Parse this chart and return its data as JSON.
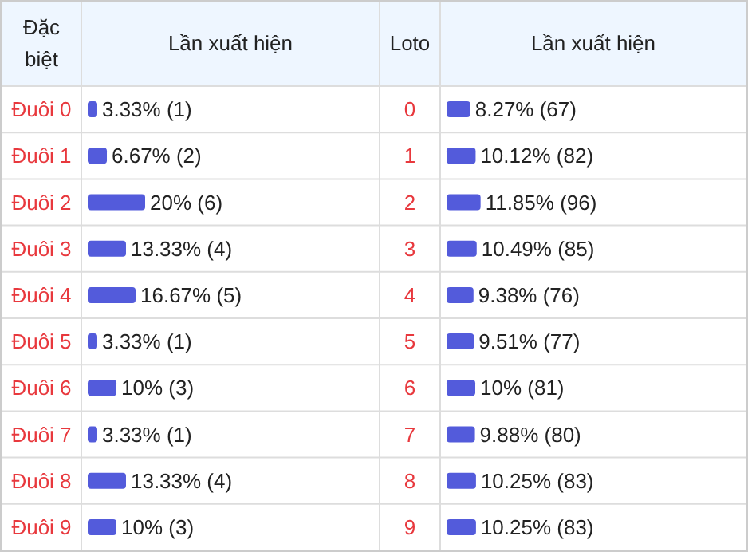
{
  "chart_data": [
    {
      "type": "bar",
      "orientation": "horizontal",
      "ylabel": "Đặc biệt",
      "xlabel": "Lần xuất hiện",
      "categories": [
        "Đuôi 0",
        "Đuôi 1",
        "Đuôi 2",
        "Đuôi 3",
        "Đuôi 4",
        "Đuôi 5",
        "Đuôi 6",
        "Đuôi 7",
        "Đuôi 8",
        "Đuôi 9"
      ],
      "values": [
        3.33,
        6.67,
        20,
        13.33,
        16.67,
        3.33,
        10,
        3.33,
        13.33,
        10
      ],
      "value_labels": [
        "3.33% (1)",
        "6.67% (2)",
        "20% (6)",
        "13.33% (4)",
        "16.67% (5)",
        "3.33% (1)",
        "10% (3)",
        "3.33% (1)",
        "13.33% (4)",
        "10% (3)"
      ],
      "color": "#535bdb"
    },
    {
      "type": "bar",
      "orientation": "horizontal",
      "ylabel": "Loto",
      "xlabel": "Lần xuất hiện",
      "categories": [
        "0",
        "1",
        "2",
        "3",
        "4",
        "5",
        "6",
        "7",
        "8",
        "9"
      ],
      "values": [
        8.27,
        10.12,
        11.85,
        10.49,
        9.38,
        9.51,
        10,
        9.88,
        10.25,
        10.25
      ],
      "value_labels": [
        "8.27% (67)",
        "10.12% (82)",
        "11.85% (96)",
        "10.49% (85)",
        "9.38% (76)",
        "9.51% (77)",
        "10% (81)",
        "9.88% (80)",
        "10.25% (83)",
        "10.25% (83)"
      ],
      "color": "#535bdb"
    }
  ]
}
